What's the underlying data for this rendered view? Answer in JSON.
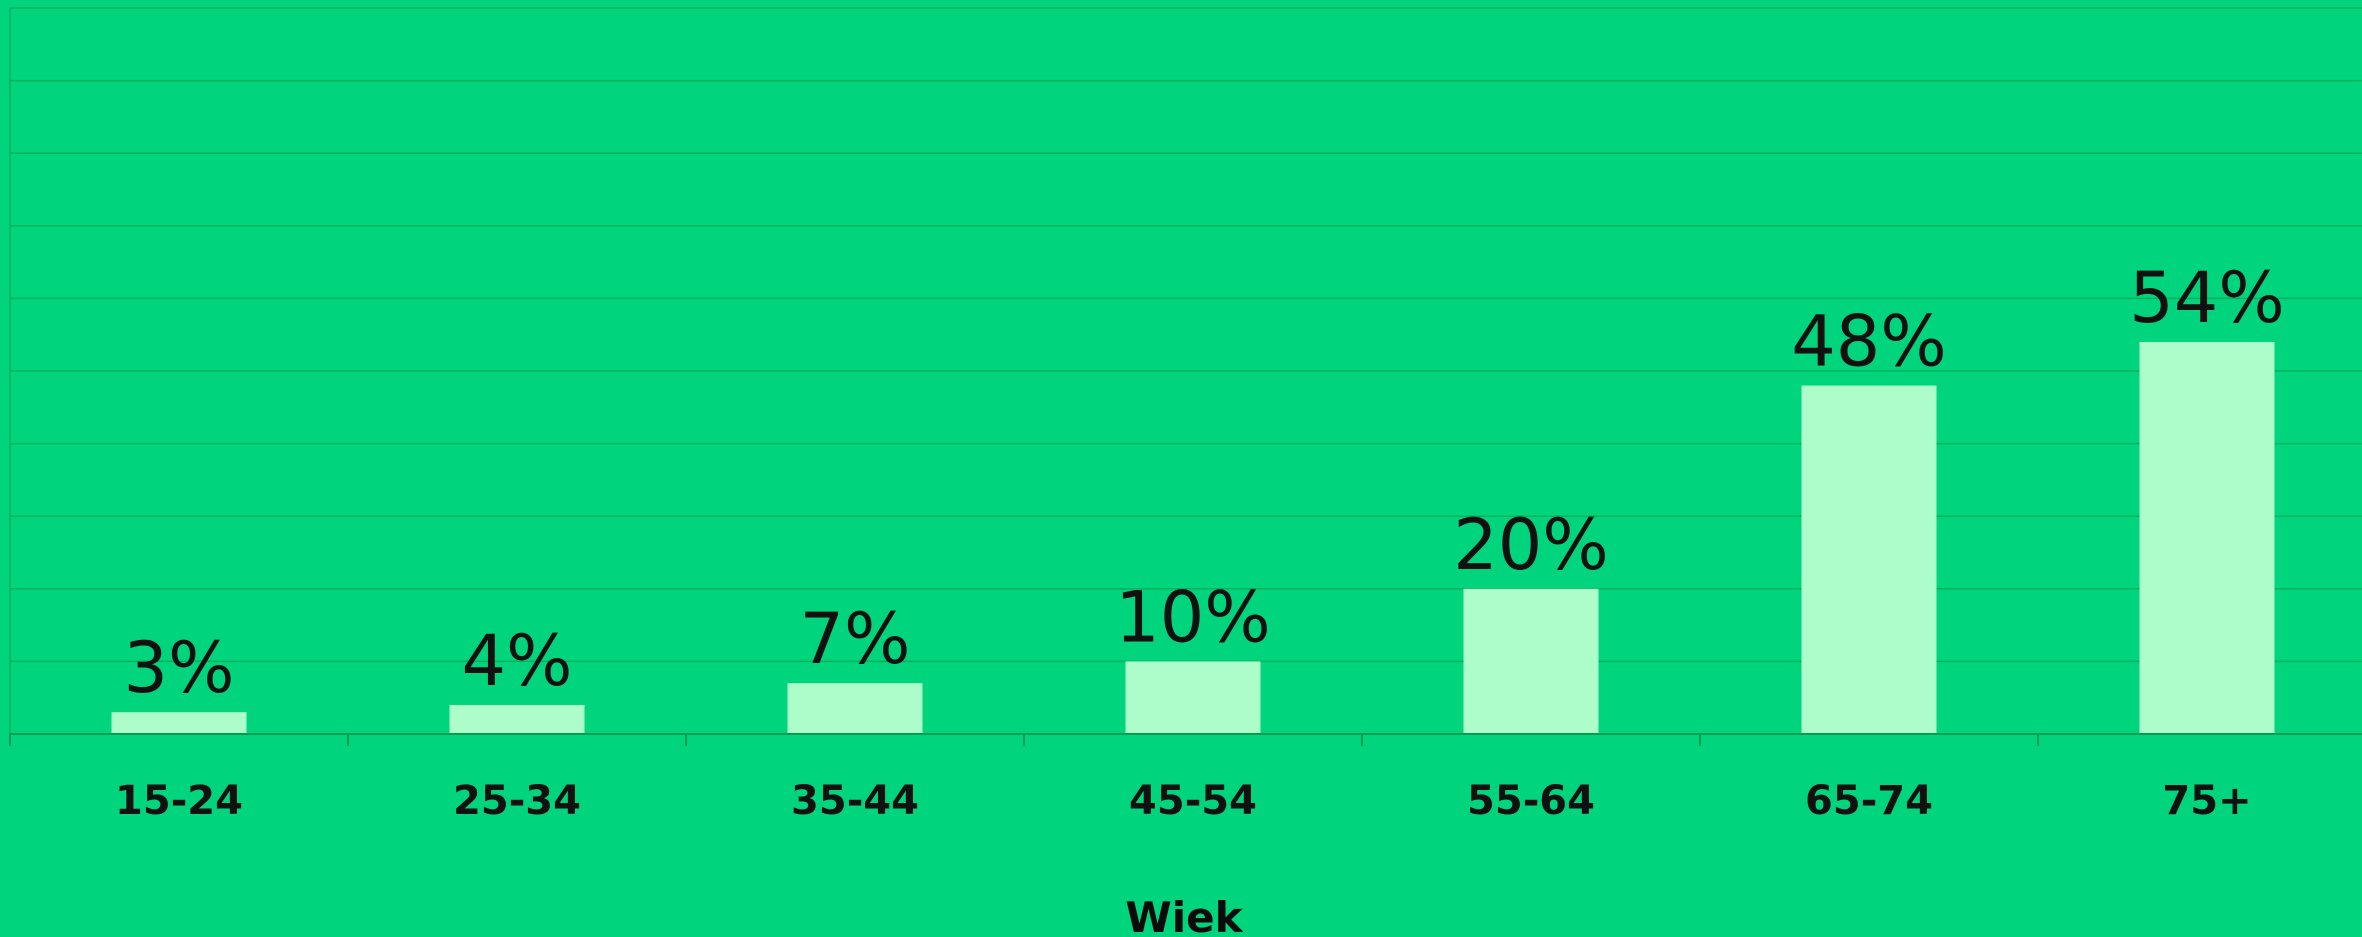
{
  "chart_data": {
    "type": "bar",
    "title": "",
    "xlabel": "Wiek",
    "ylabel": "",
    "categories": [
      "15-24",
      "25-34",
      "35-44",
      "45-54",
      "55-64",
      "65-74",
      "75+"
    ],
    "values": [
      3,
      4,
      7,
      10,
      20,
      48,
      54
    ],
    "value_labels": [
      "3%",
      "4%",
      "7%",
      "10%",
      "20%",
      "48%",
      "54%"
    ],
    "ylim": [
      0,
      100
    ],
    "grid": true,
    "legend": "none",
    "colors": {
      "background": "#00d47c",
      "bar": "#adfdcb",
      "gridline": "#06b05c",
      "text": "#111111"
    }
  }
}
